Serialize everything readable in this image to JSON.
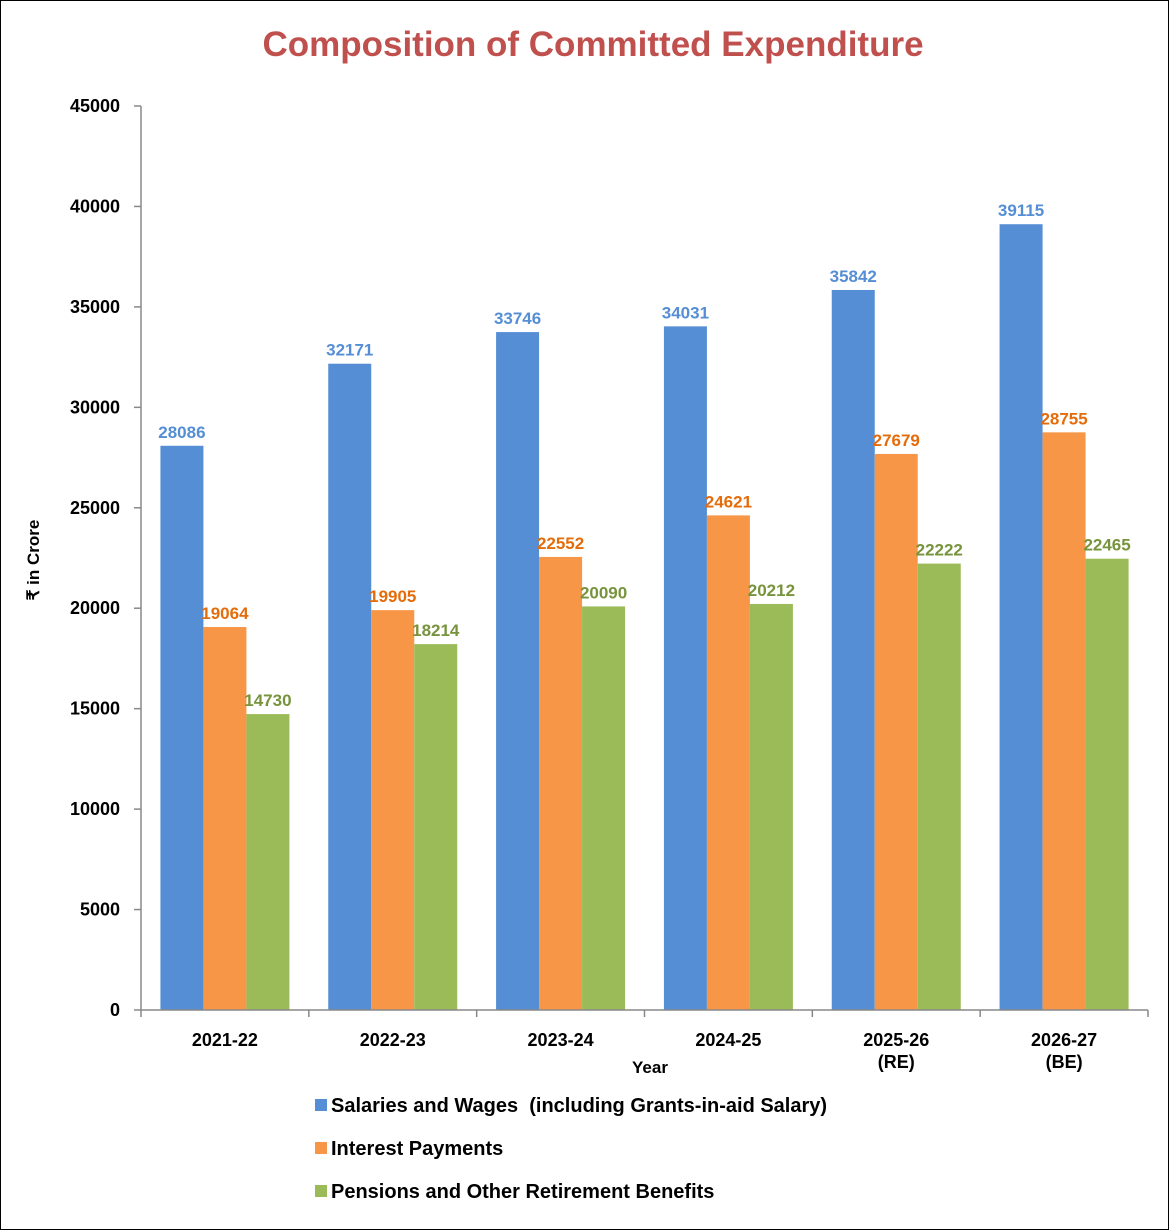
{
  "chart_data": {
    "type": "bar",
    "title": "Composition of Committed Expenditure",
    "xlabel": "Year",
    "ylabel": "₹ in Crore",
    "ylim": [
      0,
      45000
    ],
    "yticks": [
      0,
      5000,
      10000,
      15000,
      20000,
      25000,
      30000,
      35000,
      40000,
      45000
    ],
    "categories": [
      [
        "2021-22"
      ],
      [
        "2022-23"
      ],
      [
        "2023-24"
      ],
      [
        "2024-25"
      ],
      [
        "2025-26",
        "(RE)"
      ],
      [
        "2026-27",
        "(BE)"
      ]
    ],
    "series": [
      {
        "name": "Salaries and Wages  (including Grants-in-aid Salary)",
        "color": "#558ED5",
        "label_color": "#558ED5",
        "values": [
          28086,
          32171,
          33746,
          34031,
          35842,
          39115
        ]
      },
      {
        "name": "Interest Payments",
        "color": "#F79646",
        "label_color": "#E46C0A",
        "values": [
          19064,
          19905,
          22552,
          24621,
          27679,
          28755
        ]
      },
      {
        "name": "Pensions and Other Retirement Benefits",
        "color": "#9BBB59",
        "label_color": "#77933C",
        "values": [
          14730,
          18214,
          20090,
          20212,
          22222,
          22465
        ]
      }
    ],
    "grid": false,
    "legend_position": "bottom",
    "data_labels": true,
    "title_color": "#C0504D"
  }
}
